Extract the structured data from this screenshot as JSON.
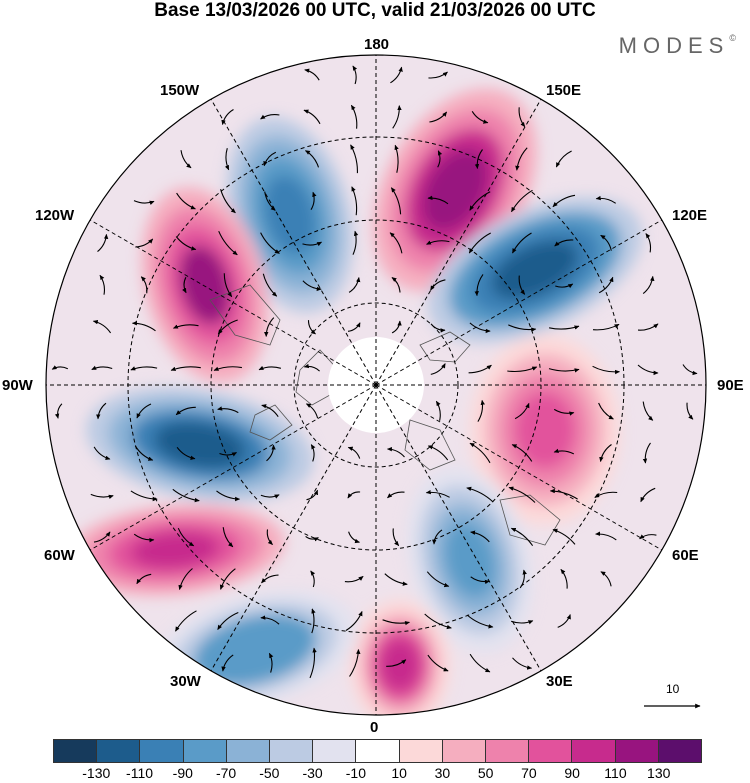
{
  "header": {
    "title": "Base 13/03/2026 00 UTC, valid 21/03/2026 00 UTC",
    "logo": "MODES",
    "logo_mark": "©"
  },
  "map": {
    "projection": "north polar stereographic",
    "longitude_labels": {
      "top": "180",
      "top_right": "150E",
      "upper_right": "120E",
      "right": "90E",
      "lower_right": "60E",
      "bottom_right": "30E",
      "bottom": "0",
      "bottom_left": "30W",
      "lower_left": "60W",
      "left": "90W",
      "upper_left": "120W",
      "top_left": "150W"
    },
    "vector_scale_label": "10"
  },
  "colorbar": {
    "colors": [
      "#163a5c",
      "#1d5c8c",
      "#3a80b5",
      "#5a9bc8",
      "#8bb2d6",
      "#bccbe3",
      "#e2e2ef",
      "#ffffff",
      "#fcd9d9",
      "#f5aebf",
      "#ee82ac",
      "#e2529c",
      "#c72b8d",
      "#98147f",
      "#5c0e6c"
    ],
    "tick_labels": [
      "-130",
      "-110",
      "-90",
      "-70",
      "-50",
      "-30",
      "-10",
      "10",
      "30",
      "50",
      "70",
      "90",
      "110",
      "130"
    ]
  },
  "anomaly_centres": [
    {
      "sector": "Aleutians / N Pacific (180-150W)",
      "sign": "negative",
      "value": -110
    },
    {
      "sector": "N Pacific / Far East (150E-160W)",
      "sign": "positive",
      "value": 120
    },
    {
      "sector": "NE Asia (120E-140E)",
      "sign": "negative",
      "value": -130
    },
    {
      "sector": "Central Asia (90E)",
      "sign": "positive",
      "value": 80
    },
    {
      "sector": "W Siberia / Urals (40E-60E)",
      "sign": "negative",
      "value": -80
    },
    {
      "sector": "NE Atlantic (0-10E)",
      "sign": "positive",
      "value": 90
    },
    {
      "sector": "N Atlantic (20W-40W)",
      "sign": "negative",
      "value": -90
    },
    {
      "sector": "W Atlantic (60W)",
      "sign": "positive",
      "value": 100
    },
    {
      "sector": "Canada (90W-100W)",
      "sign": "negative",
      "value": -120
    },
    {
      "sector": "W N America (120W-130W)",
      "sign": "positive",
      "value": 110
    }
  ]
}
